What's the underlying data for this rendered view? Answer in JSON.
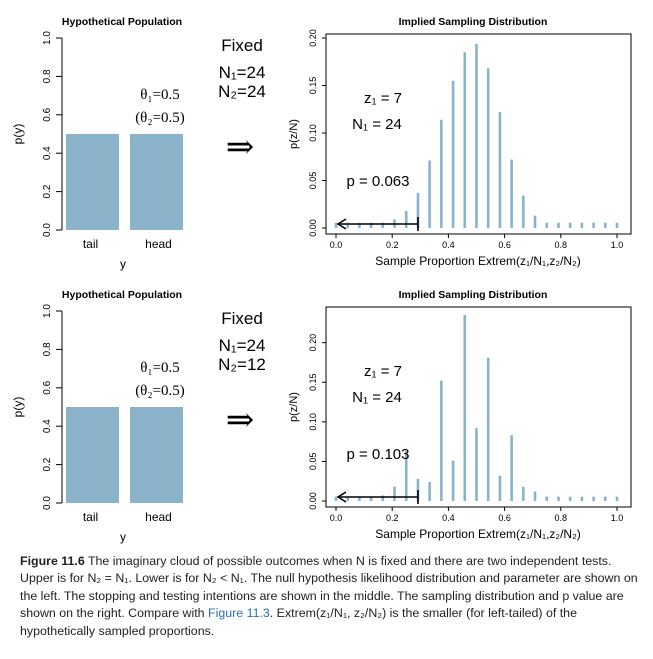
{
  "chart_data": [
    {
      "type": "bar",
      "panel": "upper-left",
      "title": "Hypothetical Population",
      "categories": [
        "tail",
        "head"
      ],
      "values": [
        0.5,
        0.5
      ],
      "xlabel": "y",
      "ylabel": "p(y)",
      "ylim": [
        0,
        1
      ],
      "yticks": [
        "0.0",
        "0.2",
        "0.4",
        "0.6",
        "0.8",
        "1.0"
      ],
      "annotations": [
        "θ₁=0.5",
        "(θ₂=0.5)"
      ]
    },
    {
      "type": "bar",
      "panel": "upper-right",
      "title": "Implied Sampling Distribution",
      "xlabel": "Sample Proportion Extrem(z₁/N₁,z₂/N₂)",
      "ylabel": "p(z/N)",
      "xlim": [
        0,
        1
      ],
      "ylim": [
        0,
        0.2
      ],
      "xticks": [
        "0.0",
        "0.2",
        "0.4",
        "0.6",
        "0.8",
        "1.0"
      ],
      "yticks": [
        "0.00",
        "0.05",
        "0.10",
        "0.15",
        "0.20"
      ],
      "x": [
        0.0,
        0.0417,
        0.0833,
        0.125,
        0.1667,
        0.2083,
        0.25,
        0.2917,
        0.3333,
        0.375,
        0.4167,
        0.4583,
        0.5,
        0.5417,
        0.5833,
        0.625,
        0.6667,
        0.7083,
        0.75,
        0.7917,
        0.8333,
        0.875,
        0.9167,
        0.9583,
        1.0
      ],
      "values": [
        0.0,
        0.0,
        0.001,
        0.002,
        0.004,
        0.009,
        0.018,
        0.037,
        0.071,
        0.114,
        0.155,
        0.185,
        0.194,
        0.168,
        0.122,
        0.072,
        0.034,
        0.013,
        0.004,
        0.001,
        0.0,
        0.0,
        0.0,
        0.0,
        0.0
      ],
      "annotations": [
        "z₁ = 7",
        "N₁ = 24",
        "p = 0.063"
      ]
    },
    {
      "type": "bar",
      "panel": "lower-left",
      "title": "Hypothetical Population",
      "categories": [
        "tail",
        "head"
      ],
      "values": [
        0.5,
        0.5
      ],
      "xlabel": "y",
      "ylabel": "p(y)",
      "ylim": [
        0,
        1
      ],
      "yticks": [
        "0.0",
        "0.2",
        "0.4",
        "0.6",
        "0.8",
        "1.0"
      ],
      "annotations": [
        "θ₁=0.5",
        "(θ₂=0.5)"
      ]
    },
    {
      "type": "bar",
      "panel": "lower-right",
      "title": "Implied Sampling Distribution",
      "xlabel": "Sample Proportion Extrem(z₁/N₁,z₂/N₂)",
      "ylabel": "p(z/N)",
      "xlim": [
        0,
        1
      ],
      "ylim": [
        0,
        0.24
      ],
      "xticks": [
        "0.0",
        "0.2",
        "0.4",
        "0.6",
        "0.8",
        "1.0"
      ],
      "yticks": [
        "0.00",
        "0.05",
        "0.10",
        "0.15",
        "0.20"
      ],
      "x": [
        0.0,
        0.0417,
        0.0833,
        0.125,
        0.1667,
        0.2083,
        0.25,
        0.2917,
        0.3333,
        0.375,
        0.4167,
        0.4583,
        0.5,
        0.5417,
        0.5833,
        0.625,
        0.6667,
        0.7083,
        0.75,
        0.7917,
        0.8333,
        0.875,
        0.9167,
        0.9583,
        1.0
      ],
      "values": [
        0.0,
        0.0,
        0.002,
        0.004,
        0.007,
        0.018,
        0.063,
        0.028,
        0.024,
        0.152,
        0.051,
        0.235,
        0.092,
        0.181,
        0.032,
        0.083,
        0.018,
        0.012,
        0.005,
        0.002,
        0.0,
        0.0,
        0.0,
        0.0,
        0.0
      ],
      "annotations": [
        "z₁ = 7",
        "N₁ = 24",
        "p = 0.103"
      ]
    }
  ],
  "middle": [
    {
      "label": "Fixed",
      "n1": "N₁=24",
      "n2": "N₂=24",
      "arrow": "⇒"
    },
    {
      "label": "Fixed",
      "n1": "N₁=24",
      "n2": "N₂=12",
      "arrow": "⇒"
    }
  ],
  "critical_x": 0.2917,
  "caption": {
    "label": "Figure 11.6",
    "text1": " The imaginary cloud of possible outcomes when N is fixed and there are two independent tests. Upper is for N₂ = N₁. Lower is for N₂ < N₁. The null hypothesis likelihood distribution and parameter are shown on the left. The stopping and testing intentions are shown in the middle. The sampling distribution and p value are shown on the right. Compare with ",
    "ref": "Figure 11.3",
    "text2": ". Extrem(z₁/N₁, z₂/N₂) is the smaller (for left-tailed) of the hypothetically sampled proportions."
  },
  "colors": {
    "bar": "#8ab3c9",
    "ink": "#000000",
    "ref": "#2a6fb5"
  }
}
